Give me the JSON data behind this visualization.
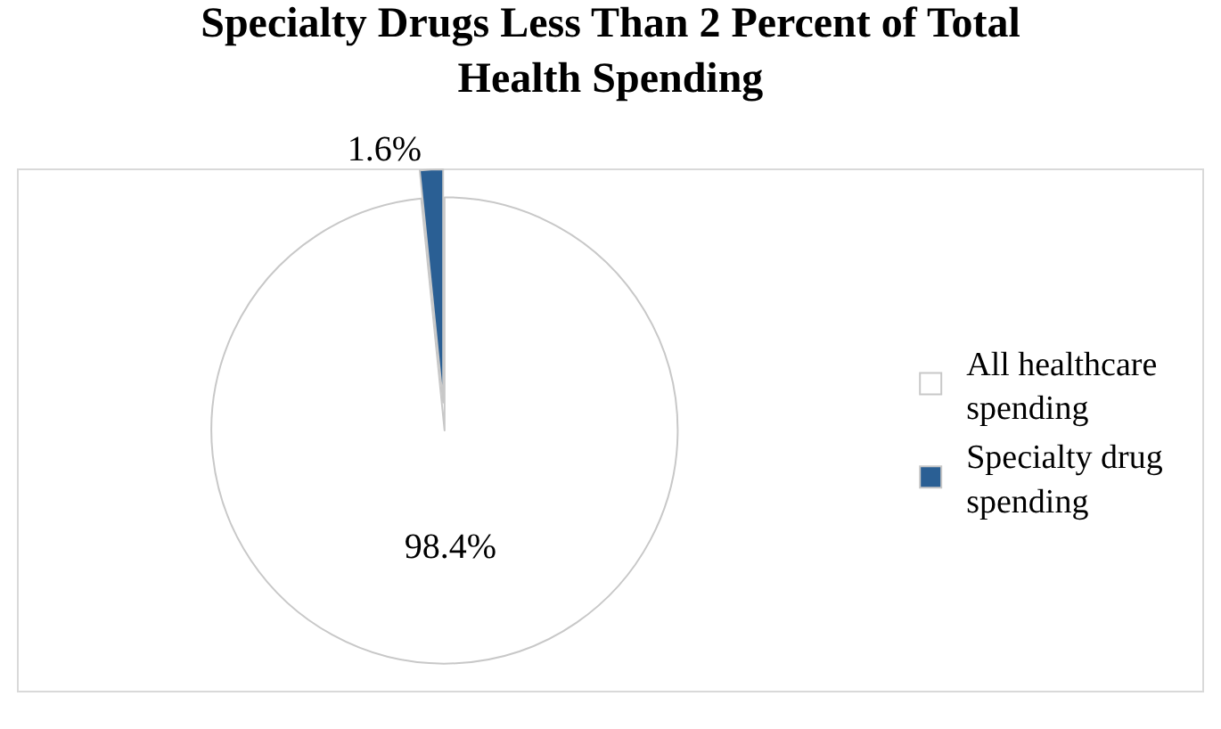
{
  "chart_data": {
    "type": "pie",
    "title": "Specialty Drugs Less Than 2 Percent of Total Health Spending",
    "categories": [
      "All healthcare spending",
      "Specialty drug spending"
    ],
    "values": [
      98.4,
      1.6
    ],
    "colors": [
      "#ffffff",
      "#2a5f94"
    ],
    "value_labels": [
      "98.4%",
      "1.6%"
    ],
    "legend": "right"
  }
}
